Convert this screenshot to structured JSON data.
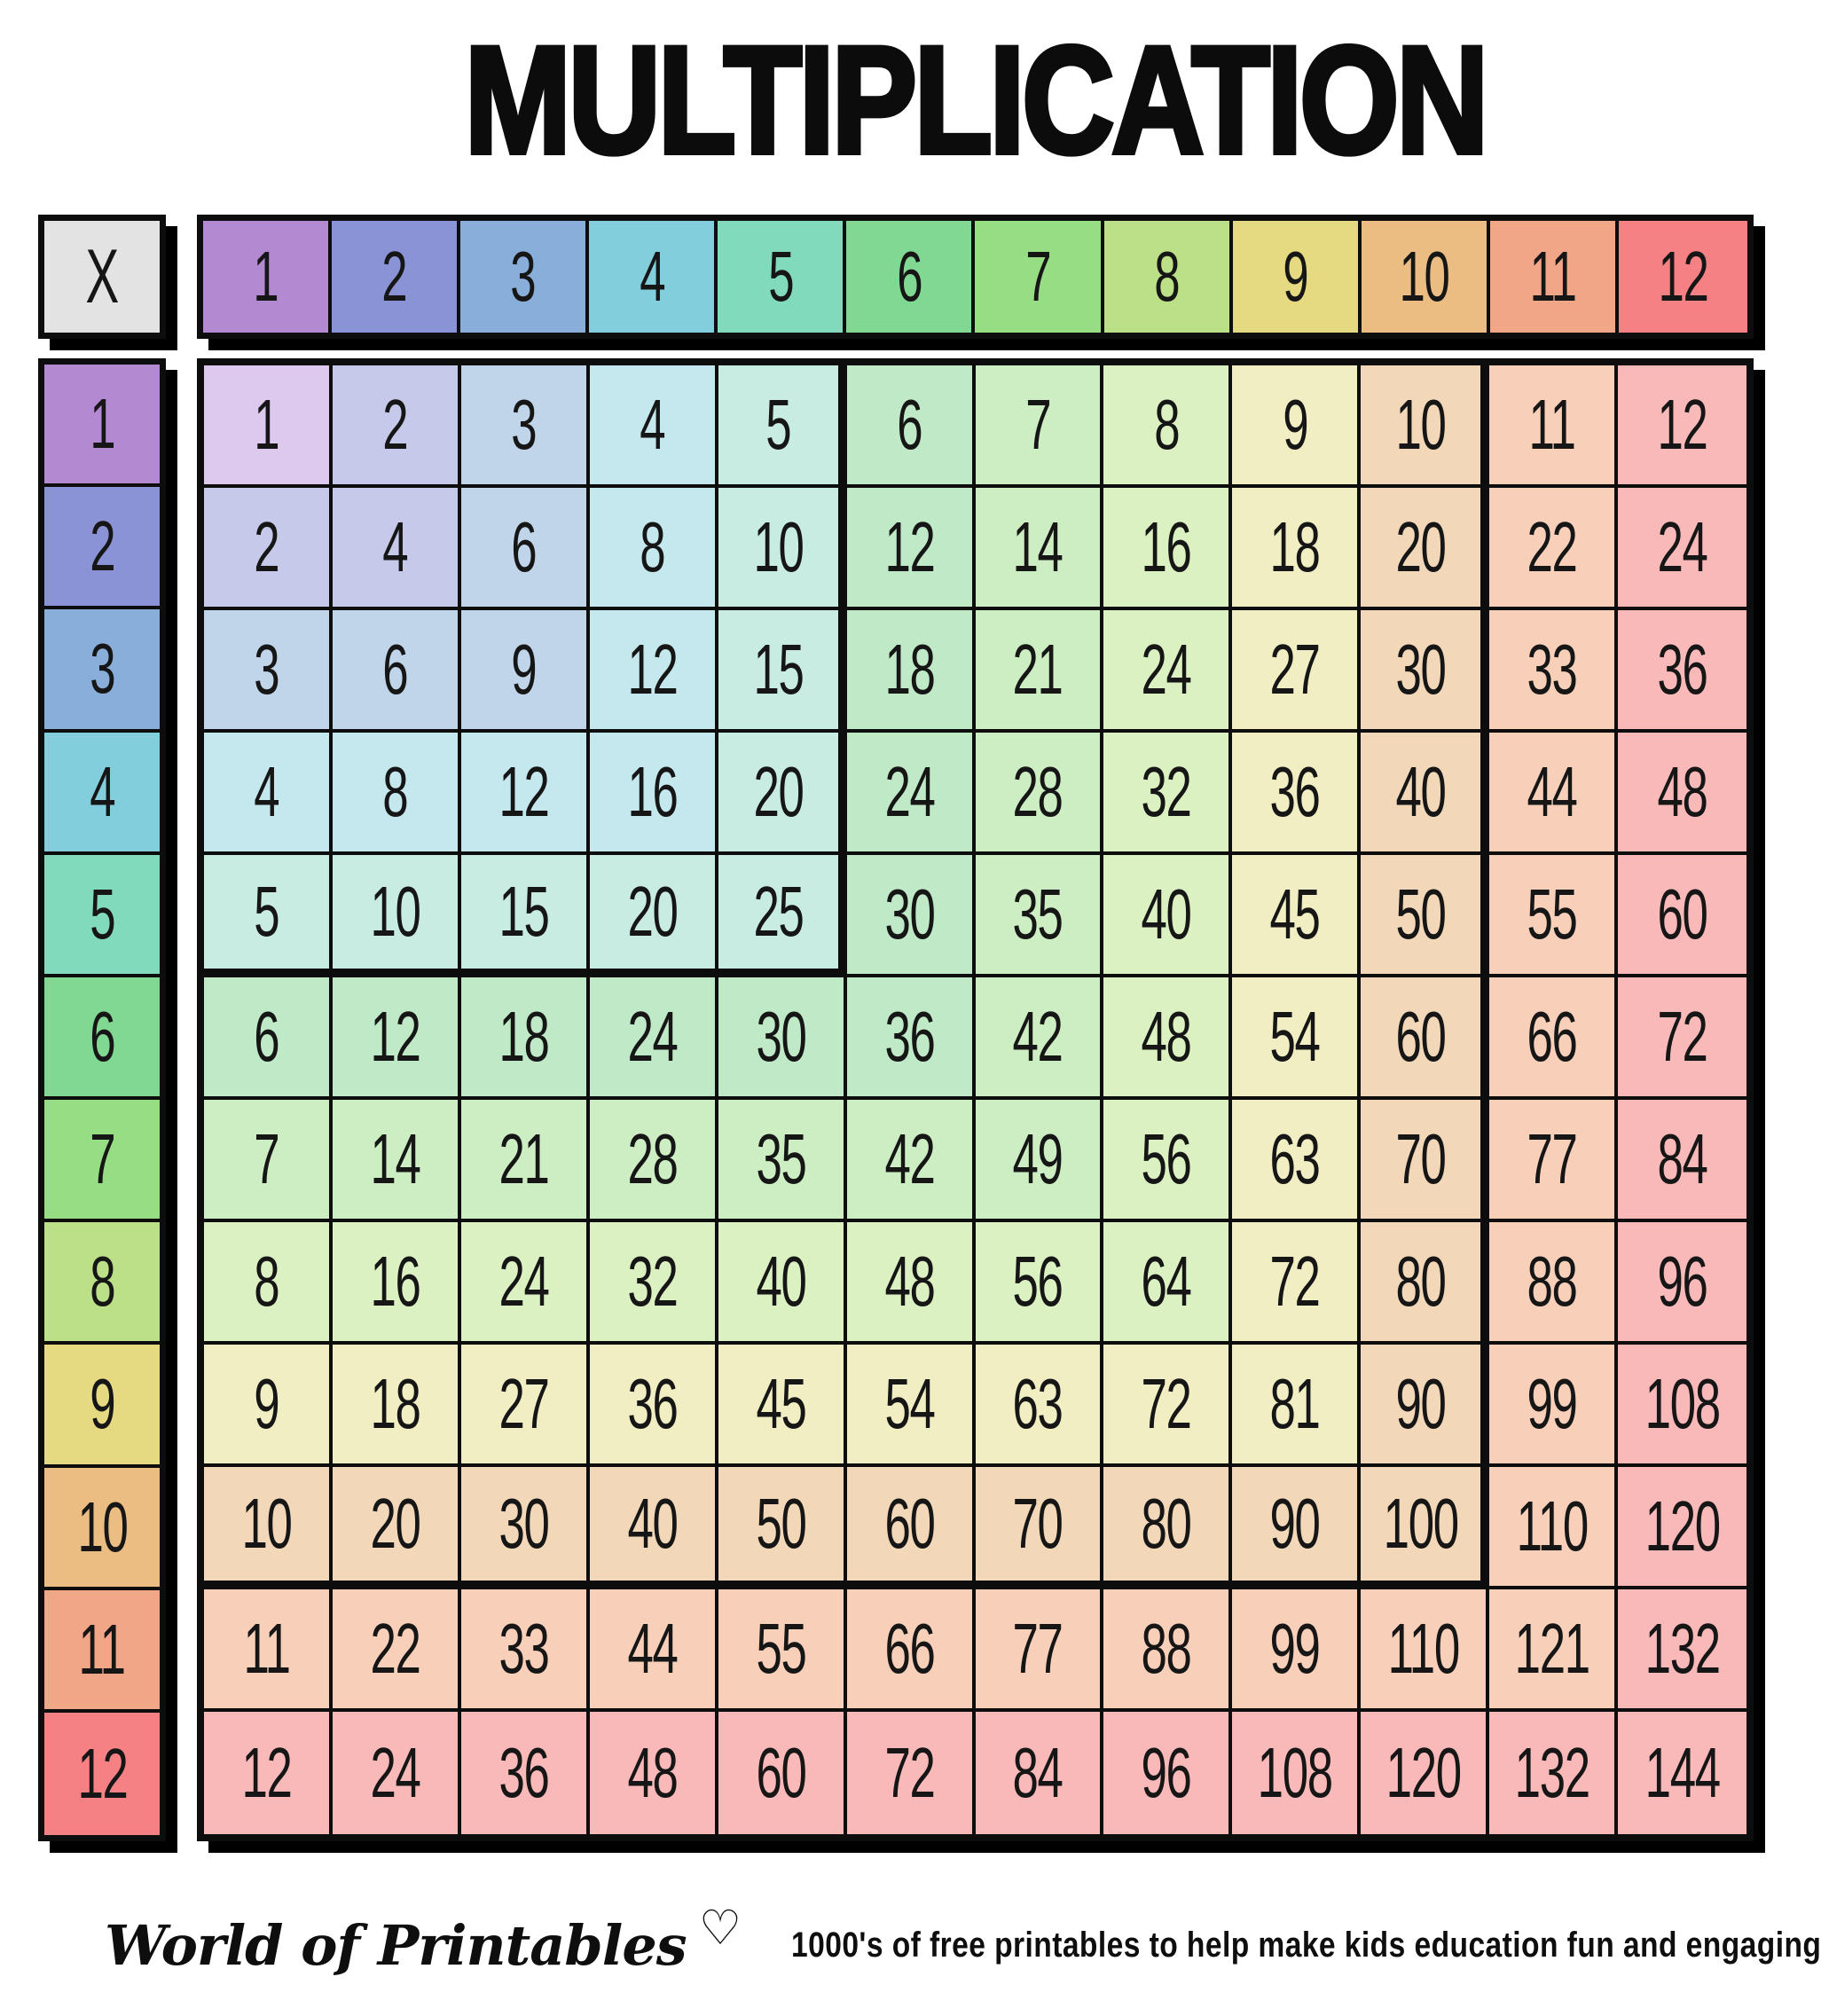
{
  "title": "MULTIPLICATION",
  "table": {
    "corner_label": "X"
  },
  "chart_data": {
    "type": "table",
    "title": "MULTIPLICATION",
    "col_headers": [
      1,
      2,
      3,
      4,
      5,
      6,
      7,
      8,
      9,
      10,
      11,
      12
    ],
    "row_headers": [
      1,
      2,
      3,
      4,
      5,
      6,
      7,
      8,
      9,
      10,
      11,
      12
    ],
    "matrix": [
      [
        1,
        2,
        3,
        4,
        5,
        6,
        7,
        8,
        9,
        10,
        11,
        12
      ],
      [
        2,
        4,
        6,
        8,
        10,
        12,
        14,
        16,
        18,
        20,
        22,
        24
      ],
      [
        3,
        6,
        9,
        12,
        15,
        18,
        21,
        24,
        27,
        30,
        33,
        36
      ],
      [
        4,
        8,
        12,
        16,
        20,
        24,
        28,
        32,
        36,
        40,
        44,
        48
      ],
      [
        5,
        10,
        15,
        20,
        25,
        30,
        35,
        40,
        45,
        50,
        55,
        60
      ],
      [
        6,
        12,
        18,
        24,
        30,
        36,
        42,
        48,
        54,
        60,
        66,
        72
      ],
      [
        7,
        14,
        21,
        28,
        35,
        42,
        49,
        56,
        63,
        70,
        77,
        84
      ],
      [
        8,
        16,
        24,
        32,
        40,
        48,
        56,
        64,
        72,
        80,
        88,
        96
      ],
      [
        9,
        18,
        27,
        36,
        45,
        54,
        63,
        72,
        81,
        90,
        99,
        108
      ],
      [
        10,
        20,
        30,
        40,
        50,
        60,
        70,
        80,
        90,
        100,
        110,
        120
      ],
      [
        11,
        22,
        33,
        44,
        55,
        66,
        77,
        88,
        99,
        110,
        121,
        132
      ],
      [
        12,
        24,
        36,
        48,
        60,
        72,
        84,
        96,
        108,
        120,
        132,
        144
      ]
    ]
  },
  "highlight_blocks": [
    5,
    10
  ],
  "colors": {
    "background": "#ffffff",
    "line": "#0d0d0d",
    "shadow": "#000000",
    "text": "#161616",
    "corner_bg": "#e3e3e3",
    "ring_header": [
      "#b389d2",
      "#8a93d6",
      "#89aeda",
      "#82cedd",
      "#82dabd",
      "#80d893",
      "#96dd83",
      "#bce087",
      "#e5d981",
      "#ebbd83",
      "#f2a688",
      "#f68185"
    ],
    "ring_cell": [
      "#ddc9ed",
      "#c6c9e9",
      "#c0d5ea",
      "#c4e8ee",
      "#c9ece2",
      "#c0eac7",
      "#cdeec2",
      "#dbf1c2",
      "#f1eec3",
      "#f2d8b8",
      "#f8d0b9",
      "#f9b9b9"
    ]
  },
  "footer": {
    "brand": "World of Printables",
    "heart_icon": "♡",
    "tagline": "1000's of free printables to help make kids education fun and engaging"
  }
}
